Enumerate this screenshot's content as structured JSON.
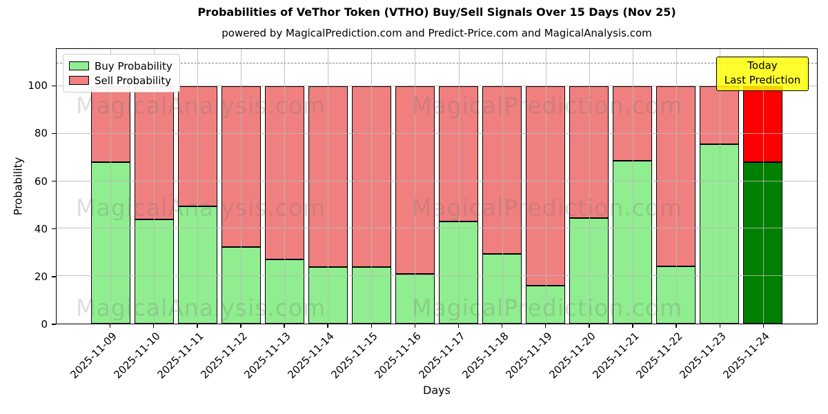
{
  "title": "Probabilities of VeThor Token (VTHO) Buy/Sell Signals Over 15 Days (Nov 25)",
  "subtitle": "powered by MagicalPrediction.com and Predict-Price.com and MagicalAnalysis.com",
  "annotation_box": {
    "line1": "Today",
    "line2": "Last Prediction",
    "bg_color": "#FFFF00"
  },
  "watermarks": {
    "left_text": "MagicalAnalysis.com",
    "right_text": "MagicalPrediction.com"
  },
  "chart_data": {
    "type": "bar",
    "stacked": true,
    "title": "Probabilities of VeThor Token (VTHO) Buy/Sell Signals Over 15 Days (Nov 25)",
    "xlabel": "Days",
    "ylabel": "Probability",
    "categories": [
      "2025-11-09",
      "2025-11-10",
      "2025-11-11",
      "2025-11-12",
      "2025-11-13",
      "2025-11-14",
      "2025-11-15",
      "2025-11-16",
      "2025-11-17",
      "2025-11-18",
      "2025-11-19",
      "2025-11-20",
      "2025-11-21",
      "2025-11-22",
      "2025-11-23",
      "2025-11-24"
    ],
    "series": [
      {
        "name": "Buy Probability",
        "color": "#90EE90",
        "values": [
          68,
          44,
          49.5,
          32.3,
          27,
          23.7,
          23.7,
          21,
          43,
          29.3,
          16,
          44.5,
          68.5,
          24,
          75.5,
          68
        ]
      },
      {
        "name": "Sell Probability",
        "color": "#F08080",
        "values": [
          32,
          56,
          50.5,
          67.7,
          73,
          76.3,
          76.3,
          79,
          57,
          70.7,
          84,
          55.5,
          31.5,
          76,
          24.5,
          32
        ]
      }
    ],
    "last_bar_colors": {
      "buy": "#008000",
      "sell": "#FF0000"
    },
    "bar_edge_color": "#000000",
    "yticks": [
      0,
      20,
      40,
      60,
      80,
      100
    ],
    "ylim": [
      0,
      115.7
    ],
    "dashed_line_y": 110,
    "grid": true,
    "legend_position": "upper left"
  }
}
